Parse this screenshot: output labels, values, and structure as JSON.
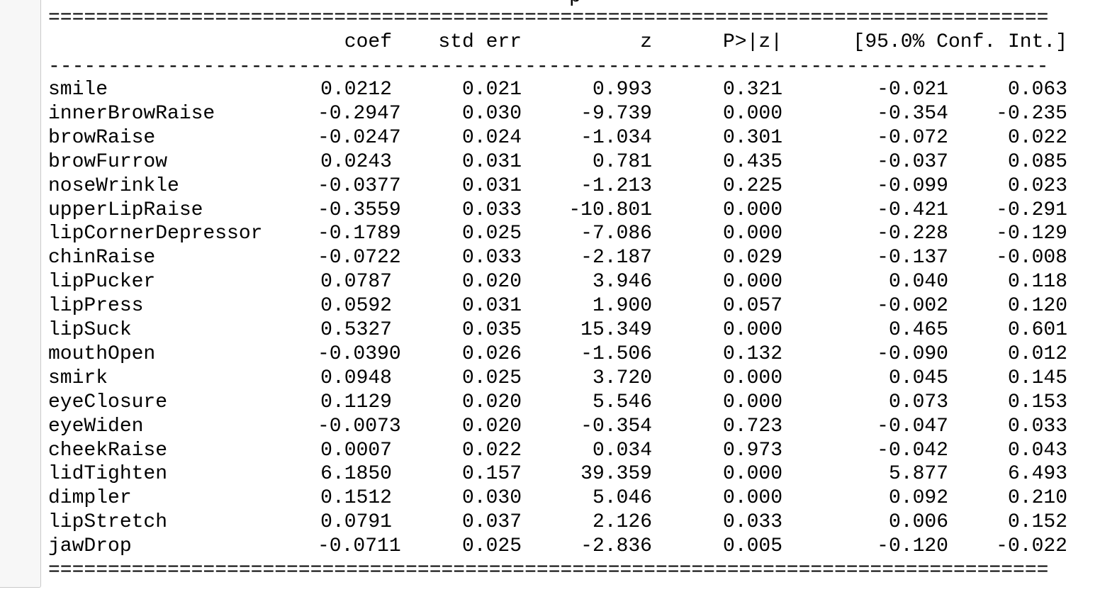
{
  "header_partial": {
    "left_text": "p ------",
    "right_text": "------"
  },
  "columns": {
    "coef": "coef",
    "std_err": "std err",
    "z": "z",
    "p_value": "P>|z|",
    "conf_int": "[95.0% Conf. Int.]"
  },
  "separators": {
    "double": "====================================================================================",
    "single": "------------------------------------------------------------------------------------"
  },
  "rows": [
    {
      "name": "smile",
      "coef": "0.0212",
      "std_err": "0.021",
      "z": "0.993",
      "p": "0.321",
      "lo": "-0.021",
      "hi": "0.063"
    },
    {
      "name": "innerBrowRaise",
      "coef": "-0.2947",
      "std_err": "0.030",
      "z": "-9.739",
      "p": "0.000",
      "lo": "-0.354",
      "hi": "-0.235"
    },
    {
      "name": "browRaise",
      "coef": "-0.0247",
      "std_err": "0.024",
      "z": "-1.034",
      "p": "0.301",
      "lo": "-0.072",
      "hi": "0.022"
    },
    {
      "name": "browFurrow",
      "coef": "0.0243",
      "std_err": "0.031",
      "z": "0.781",
      "p": "0.435",
      "lo": "-0.037",
      "hi": "0.085"
    },
    {
      "name": "noseWrinkle",
      "coef": "-0.0377",
      "std_err": "0.031",
      "z": "-1.213",
      "p": "0.225",
      "lo": "-0.099",
      "hi": "0.023"
    },
    {
      "name": "upperLipRaise",
      "coef": "-0.3559",
      "std_err": "0.033",
      "z": "-10.801",
      "p": "0.000",
      "lo": "-0.421",
      "hi": "-0.291"
    },
    {
      "name": "lipCornerDepressor",
      "coef": "-0.1789",
      "std_err": "0.025",
      "z": "-7.086",
      "p": "0.000",
      "lo": "-0.228",
      "hi": "-0.129"
    },
    {
      "name": "chinRaise",
      "coef": "-0.0722",
      "std_err": "0.033",
      "z": "-2.187",
      "p": "0.029",
      "lo": "-0.137",
      "hi": "-0.008"
    },
    {
      "name": "lipPucker",
      "coef": "0.0787",
      "std_err": "0.020",
      "z": "3.946",
      "p": "0.000",
      "lo": "0.040",
      "hi": "0.118"
    },
    {
      "name": "lipPress",
      "coef": "0.0592",
      "std_err": "0.031",
      "z": "1.900",
      "p": "0.057",
      "lo": "-0.002",
      "hi": "0.120"
    },
    {
      "name": "lipSuck",
      "coef": "0.5327",
      "std_err": "0.035",
      "z": "15.349",
      "p": "0.000",
      "lo": "0.465",
      "hi": "0.601"
    },
    {
      "name": "mouthOpen",
      "coef": "-0.0390",
      "std_err": "0.026",
      "z": "-1.506",
      "p": "0.132",
      "lo": "-0.090",
      "hi": "0.012"
    },
    {
      "name": "smirk",
      "coef": "0.0948",
      "std_err": "0.025",
      "z": "3.720",
      "p": "0.000",
      "lo": "0.045",
      "hi": "0.145"
    },
    {
      "name": "eyeClosure",
      "coef": "0.1129",
      "std_err": "0.020",
      "z": "5.546",
      "p": "0.000",
      "lo": "0.073",
      "hi": "0.153"
    },
    {
      "name": "eyeWiden",
      "coef": "-0.0073",
      "std_err": "0.020",
      "z": "-0.354",
      "p": "0.723",
      "lo": "-0.047",
      "hi": "0.033"
    },
    {
      "name": "cheekRaise",
      "coef": "0.0007",
      "std_err": "0.022",
      "z": "0.034",
      "p": "0.973",
      "lo": "-0.042",
      "hi": "0.043"
    },
    {
      "name": "lidTighten",
      "coef": "6.1850",
      "std_err": "0.157",
      "z": "39.359",
      "p": "0.000",
      "lo": "5.877",
      "hi": "6.493"
    },
    {
      "name": "dimpler",
      "coef": "0.1512",
      "std_err": "0.030",
      "z": "5.046",
      "p": "0.000",
      "lo": "0.092",
      "hi": "0.210"
    },
    {
      "name": "lipStretch",
      "coef": "0.0791",
      "std_err": "0.037",
      "z": "2.126",
      "p": "0.033",
      "lo": "0.006",
      "hi": "0.152"
    },
    {
      "name": "jawDrop",
      "coef": "-0.0711",
      "std_err": "0.025",
      "z": "-2.836",
      "p": "0.005",
      "lo": "-0.120",
      "hi": "-0.022"
    }
  ]
}
